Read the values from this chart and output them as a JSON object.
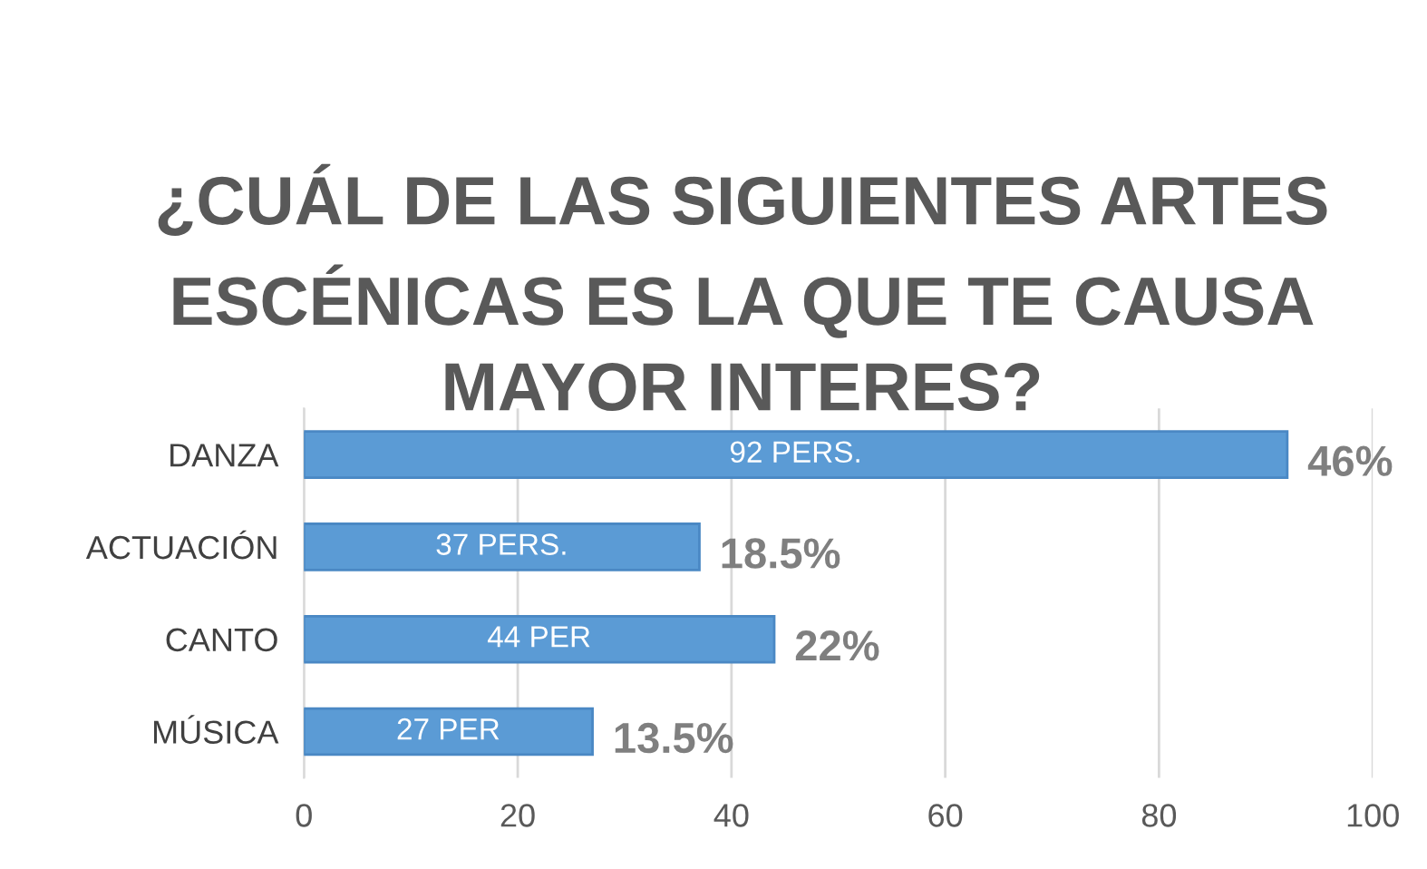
{
  "chart_data": {
    "type": "bar",
    "orientation": "horizontal",
    "title": "¿CUÁL DE LAS SIGUIENTES ARTES ESCÉNICAS ES LA QUE TE CAUSA MAYOR INTERES?",
    "categories": [
      "DANZA",
      "ACTUACIÓN",
      "CANTO",
      "MÚSICA"
    ],
    "values": [
      92,
      37,
      44,
      27
    ],
    "value_labels": [
      "92 PERS.",
      "37 PERS.",
      "44 PER",
      "27 PER"
    ],
    "color": "#5b9bd5",
    "xlim": [
      0,
      100
    ],
    "xticks": [
      0,
      20,
      40,
      60,
      80,
      100
    ],
    "grid": "x",
    "annotations": [
      {
        "text": "46%",
        "x": 92,
        "y": "DANZA"
      },
      {
        "text": "18.5%",
        "x": 37,
        "y": "ACTUACIÓN"
      },
      {
        "text": "22%",
        "x": 44,
        "y": "CANTO"
      },
      {
        "text": "13.5%",
        "x": 27,
        "y": "MÚSICA"
      }
    ]
  }
}
